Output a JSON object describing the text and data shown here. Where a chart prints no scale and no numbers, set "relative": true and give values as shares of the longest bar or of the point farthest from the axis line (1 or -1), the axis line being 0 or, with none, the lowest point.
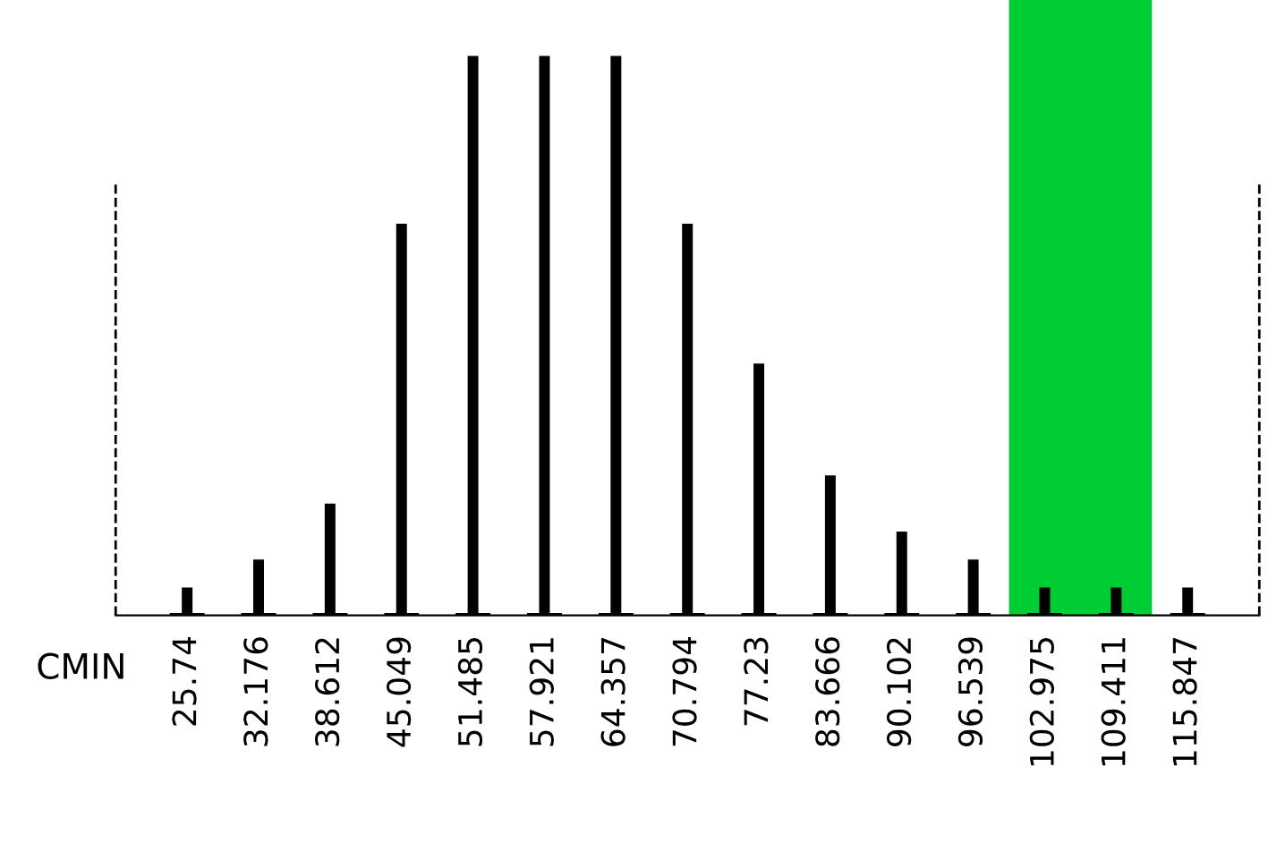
{
  "chart_data": {
    "type": "bar",
    "relative": true,
    "xlabel": "CMIN",
    "x": [
      25.74,
      32.176,
      38.612,
      45.049,
      51.485,
      57.921,
      64.357,
      70.794,
      77.23,
      83.666,
      90.102,
      96.539,
      102.975,
      109.411,
      115.847
    ],
    "values": [
      0.05,
      0.1,
      0.2,
      0.7,
      1,
      1,
      1,
      0.7,
      0.45,
      0.25,
      0.15,
      0.1,
      0.05,
      0.05,
      0.05
    ],
    "color": "#000000",
    "xlim": [
      19.3,
      122.3
    ],
    "xticks": [
      25.74,
      32.176,
      38.612,
      45.049,
      51.485,
      57.921,
      64.357,
      70.794,
      77.23,
      83.666,
      90.102,
      96.539,
      102.975,
      109.411,
      115.847
    ],
    "ref_lines": [
      {
        "axis": "x",
        "value": 19.3,
        "line_style": "dashed",
        "color": "#000000"
      },
      {
        "axis": "x",
        "value": 122.3,
        "line_style": "dashed",
        "color": "#000000"
      }
    ],
    "bands": [
      {
        "axis": "x",
        "from": 99.757,
        "to": 112.629,
        "color": "#00cc33"
      }
    ],
    "grid": false
  }
}
